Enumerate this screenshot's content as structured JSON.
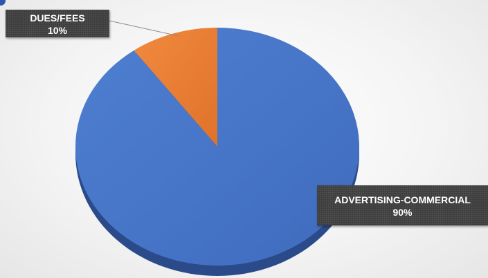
{
  "chart_data": {
    "type": "pie",
    "categories": [
      "ADVERTISING-COMMERCIAL",
      "DUES/FEES"
    ],
    "values": [
      90,
      10
    ],
    "labels": [
      {
        "name": "ADVERTISING-COMMERCIAL",
        "percent": "90%"
      },
      {
        "name": "DUES/FEES",
        "percent": "10%"
      }
    ],
    "colors": [
      "#4472c4",
      "#ed7d31"
    ],
    "title": "",
    "legend": "none",
    "style": "3d"
  }
}
